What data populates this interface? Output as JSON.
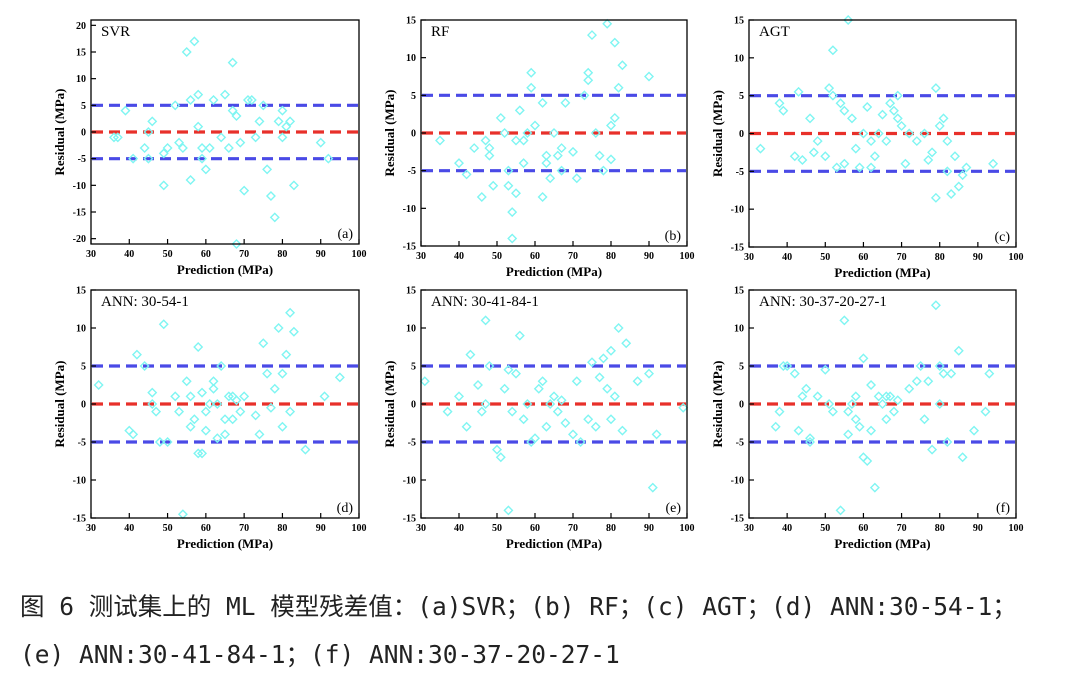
{
  "caption": {
    "line1": "图 6 测试集上的 ML 模型残差值：(a)SVR；(b) RF；(c) AGT；(d) ANN:30-54-1；",
    "line2": "(e) ANN:30-41-84-1；(f) ANN:30-37-20-27-1"
  },
  "colors": {
    "points": "#7ff5f2",
    "zero_line": "#e8302a",
    "band_lines": "#4a4ae6",
    "axes": "#000000"
  },
  "chart_data": [
    {
      "type": "scatter",
      "title": "SVR",
      "panel_label": "(a)",
      "xlabel": "Prediction (MPa)",
      "ylabel": "Residual (MPa)",
      "xlim": [
        30,
        100
      ],
      "ylim": [
        -21,
        21
      ],
      "xticks": [
        30,
        40,
        50,
        60,
        70,
        80,
        90,
        100
      ],
      "yticks": [
        -20,
        -15,
        -10,
        -5,
        0,
        5,
        10,
        15,
        20
      ],
      "reference_lines": [
        -5,
        0,
        5
      ],
      "points": [
        [
          36,
          -1
        ],
        [
          37,
          -1
        ],
        [
          39,
          4
        ],
        [
          41,
          -5
        ],
        [
          44,
          -3
        ],
        [
          45,
          -5
        ],
        [
          45,
          0
        ],
        [
          46,
          2
        ],
        [
          49,
          -4
        ],
        [
          49,
          -10
        ],
        [
          50,
          -3
        ],
        [
          52,
          5
        ],
        [
          53,
          -2
        ],
        [
          54,
          -3
        ],
        [
          55,
          15
        ],
        [
          56,
          -9
        ],
        [
          56,
          6
        ],
        [
          57,
          17
        ],
        [
          58,
          7
        ],
        [
          58,
          1
        ],
        [
          59,
          -3
        ],
        [
          59,
          -5
        ],
        [
          60,
          -7
        ],
        [
          61,
          -3
        ],
        [
          62,
          6
        ],
        [
          64,
          -1
        ],
        [
          65,
          7
        ],
        [
          66,
          -3
        ],
        [
          67,
          13
        ],
        [
          67,
          4
        ],
        [
          68,
          3
        ],
        [
          68,
          -21
        ],
        [
          69,
          -2
        ],
        [
          70,
          -11
        ],
        [
          71,
          6
        ],
        [
          72,
          6
        ],
        [
          73,
          -1
        ],
        [
          74,
          2
        ],
        [
          75,
          5
        ],
        [
          76,
          -7
        ],
        [
          77,
          -12
        ],
        [
          78,
          -16
        ],
        [
          79,
          2
        ],
        [
          80,
          -1
        ],
        [
          80,
          4
        ],
        [
          81,
          1
        ],
        [
          82,
          2
        ],
        [
          83,
          -10
        ],
        [
          90,
          -2
        ],
        [
          92,
          -5
        ]
      ]
    },
    {
      "type": "scatter",
      "title": "RF",
      "panel_label": "(b)",
      "xlabel": "Prediction (MPa)",
      "ylabel": "Residual (MPa)",
      "xlim": [
        30,
        100
      ],
      "ylim": [
        -15,
        15
      ],
      "xticks": [
        30,
        40,
        50,
        60,
        70,
        80,
        90,
        100
      ],
      "yticks": [
        -15,
        -10,
        -5,
        0,
        5,
        10,
        15
      ],
      "reference_lines": [
        -5,
        0,
        5
      ],
      "points": [
        [
          35,
          -1
        ],
        [
          40,
          -4
        ],
        [
          42,
          -5.5
        ],
        [
          44,
          -2
        ],
        [
          46,
          -8.5
        ],
        [
          47,
          -1
        ],
        [
          48,
          -3
        ],
        [
          48,
          -2
        ],
        [
          49,
          -7
        ],
        [
          51,
          2
        ],
        [
          52,
          0
        ],
        [
          53,
          -5
        ],
        [
          53,
          -7
        ],
        [
          54,
          -14
        ],
        [
          54,
          -10.5
        ],
        [
          55,
          -8
        ],
        [
          55,
          -1
        ],
        [
          56,
          3
        ],
        [
          57,
          -1
        ],
        [
          57,
          -4
        ],
        [
          58,
          0
        ],
        [
          59,
          8
        ],
        [
          59,
          6
        ],
        [
          60,
          1
        ],
        [
          62,
          -8.5
        ],
        [
          62,
          4
        ],
        [
          63,
          -4
        ],
        [
          63,
          -3
        ],
        [
          64,
          -6
        ],
        [
          65,
          0
        ],
        [
          66,
          -3
        ],
        [
          67,
          -2
        ],
        [
          67,
          -5
        ],
        [
          68,
          4
        ],
        [
          70,
          -2.5
        ],
        [
          71,
          -6
        ],
        [
          73,
          5
        ],
        [
          74,
          8
        ],
        [
          74,
          7
        ],
        [
          75,
          13
        ],
        [
          76,
          0
        ],
        [
          77,
          -3
        ],
        [
          78,
          -5
        ],
        [
          79,
          14.5
        ],
        [
          80,
          1
        ],
        [
          80,
          -3.5
        ],
        [
          81,
          12
        ],
        [
          81,
          2
        ],
        [
          82,
          6
        ],
        [
          83,
          9
        ],
        [
          90,
          7.5
        ]
      ]
    },
    {
      "type": "scatter",
      "title": "AGT",
      "panel_label": "(c)",
      "xlabel": "Prediction (MPa)",
      "ylabel": "Residual (MPa)",
      "xlim": [
        30,
        100
      ],
      "ylim": [
        -15,
        15
      ],
      "xticks": [
        30,
        40,
        50,
        60,
        70,
        80,
        90,
        100
      ],
      "yticks": [
        -15,
        -10,
        -5,
        0,
        5,
        10,
        15
      ],
      "reference_lines": [
        -5,
        0,
        5
      ],
      "points": [
        [
          33,
          -2
        ],
        [
          38,
          4
        ],
        [
          39,
          3
        ],
        [
          42,
          -3
        ],
        [
          43,
          5.5
        ],
        [
          44,
          -3.5
        ],
        [
          46,
          2
        ],
        [
          47,
          -2.5
        ],
        [
          48,
          -1
        ],
        [
          50,
          -3
        ],
        [
          51,
          6
        ],
        [
          52,
          11
        ],
        [
          52,
          5
        ],
        [
          53,
          -4.5
        ],
        [
          54,
          4
        ],
        [
          55,
          3
        ],
        [
          55,
          -4
        ],
        [
          56,
          15
        ],
        [
          57,
          2
        ],
        [
          58,
          -2
        ],
        [
          59,
          -4.5
        ],
        [
          60,
          0
        ],
        [
          61,
          3.5
        ],
        [
          62,
          -1
        ],
        [
          62,
          -4.5
        ],
        [
          63,
          -3
        ],
        [
          64,
          0
        ],
        [
          65,
          2.5
        ],
        [
          66,
          -1
        ],
        [
          67,
          4
        ],
        [
          68,
          3
        ],
        [
          69,
          5
        ],
        [
          69,
          2
        ],
        [
          70,
          1
        ],
        [
          71,
          -4
        ],
        [
          72,
          0
        ],
        [
          74,
          -1
        ],
        [
          76,
          0
        ],
        [
          77,
          -3.5
        ],
        [
          78,
          -2.5
        ],
        [
          79,
          6
        ],
        [
          79,
          -8.5
        ],
        [
          80,
          1
        ],
        [
          81,
          2
        ],
        [
          82,
          -1
        ],
        [
          82,
          -5
        ],
        [
          83,
          -8
        ],
        [
          84,
          -3
        ],
        [
          85,
          -7
        ],
        [
          86,
          -5.5
        ],
        [
          87,
          -4.5
        ],
        [
          94,
          -4
        ]
      ]
    },
    {
      "type": "scatter",
      "title": "ANN: 30-54-1",
      "panel_label": "(d)",
      "xlabel": "Prediction (MPa)",
      "ylabel": "Residual (MPa)",
      "xlim": [
        30,
        100
      ],
      "ylim": [
        -15,
        15
      ],
      "xticks": [
        30,
        40,
        50,
        60,
        70,
        80,
        90,
        100
      ],
      "yticks": [
        -15,
        -10,
        -5,
        0,
        5,
        10,
        15
      ],
      "reference_lines": [
        -5,
        0,
        5
      ],
      "points": [
        [
          32,
          2.5
        ],
        [
          40,
          -3.5
        ],
        [
          41,
          -4
        ],
        [
          42,
          6.5
        ],
        [
          44,
          5
        ],
        [
          46,
          1.5
        ],
        [
          46,
          0
        ],
        [
          47,
          -1
        ],
        [
          48,
          -5
        ],
        [
          49,
          10.5
        ],
        [
          50,
          -5
        ],
        [
          52,
          1
        ],
        [
          53,
          -1
        ],
        [
          54,
          -14.5
        ],
        [
          55,
          3
        ],
        [
          56,
          1
        ],
        [
          56,
          -3
        ],
        [
          57,
          -2
        ],
        [
          58,
          7.5
        ],
        [
          58,
          -6.5
        ],
        [
          59,
          1.5
        ],
        [
          59,
          -6.5
        ],
        [
          60,
          -1
        ],
        [
          60,
          -3.5
        ],
        [
          61,
          0
        ],
        [
          62,
          2
        ],
        [
          62,
          3
        ],
        [
          63,
          -4.5
        ],
        [
          63,
          0
        ],
        [
          64,
          5
        ],
        [
          65,
          -2
        ],
        [
          65,
          -4
        ],
        [
          66,
          1
        ],
        [
          67,
          -2
        ],
        [
          67,
          1
        ],
        [
          68,
          0.5
        ],
        [
          69,
          -1
        ],
        [
          70,
          1
        ],
        [
          73,
          -1.5
        ],
        [
          74,
          -4
        ],
        [
          75,
          8
        ],
        [
          76,
          4
        ],
        [
          77,
          -0.5
        ],
        [
          78,
          2
        ],
        [
          79,
          10
        ],
        [
          80,
          -3
        ],
        [
          80,
          4
        ],
        [
          81,
          6.5
        ],
        [
          82,
          -1
        ],
        [
          82,
          12
        ],
        [
          83,
          9.5
        ],
        [
          86,
          -6
        ],
        [
          91,
          1
        ],
        [
          95,
          3.5
        ]
      ]
    },
    {
      "type": "scatter",
      "title": "ANN: 30-41-84-1",
      "panel_label": "(e)",
      "xlabel": "Prediction (MPa)",
      "ylabel": "Residual (MPa)",
      "xlim": [
        30,
        100
      ],
      "ylim": [
        -15,
        15
      ],
      "xticks": [
        30,
        40,
        50,
        60,
        70,
        80,
        90,
        100
      ],
      "yticks": [
        -15,
        -10,
        -5,
        0,
        5,
        10,
        15
      ],
      "reference_lines": [
        -5,
        0,
        5
      ],
      "points": [
        [
          31,
          3
        ],
        [
          37,
          -1
        ],
        [
          40,
          1
        ],
        [
          42,
          -3
        ],
        [
          43,
          6.5
        ],
        [
          45,
          2.5
        ],
        [
          46,
          -1
        ],
        [
          47,
          0
        ],
        [
          47,
          11
        ],
        [
          48,
          5
        ],
        [
          50,
          -6
        ],
        [
          51,
          -7
        ],
        [
          52,
          2
        ],
        [
          53,
          4.5
        ],
        [
          53,
          -14
        ],
        [
          54,
          -1
        ],
        [
          55,
          4
        ],
        [
          56,
          9
        ],
        [
          57,
          -2
        ],
        [
          58,
          0
        ],
        [
          59,
          -5
        ],
        [
          60,
          -4.5
        ],
        [
          61,
          2
        ],
        [
          62,
          3
        ],
        [
          63,
          -3
        ],
        [
          64,
          0
        ],
        [
          65,
          1
        ],
        [
          66,
          -1
        ],
        [
          67,
          0.5
        ],
        [
          68,
          -2.5
        ],
        [
          70,
          -4
        ],
        [
          71,
          3
        ],
        [
          72,
          -5
        ],
        [
          74,
          -2
        ],
        [
          75,
          5.5
        ],
        [
          76,
          -3
        ],
        [
          77,
          3.5
        ],
        [
          78,
          6
        ],
        [
          79,
          2
        ],
        [
          80,
          -2
        ],
        [
          80,
          7
        ],
        [
          81,
          1
        ],
        [
          82,
          10
        ],
        [
          83,
          -3.5
        ],
        [
          84,
          8
        ],
        [
          87,
          3
        ],
        [
          90,
          4
        ],
        [
          91,
          -11
        ],
        [
          92,
          -4
        ],
        [
          99,
          -0.5
        ]
      ]
    },
    {
      "type": "scatter",
      "title": "ANN: 30-37-20-27-1",
      "panel_label": "(f)",
      "xlabel": "Prediction (MPa)",
      "ylabel": "Residual (MPa)",
      "xlim": [
        30,
        100
      ],
      "ylim": [
        -15,
        15
      ],
      "xticks": [
        30,
        40,
        50,
        60,
        70,
        80,
        90,
        100
      ],
      "yticks": [
        -15,
        -10,
        -5,
        0,
        5,
        10,
        15
      ],
      "reference_lines": [
        -5,
        0,
        5
      ],
      "points": [
        [
          37,
          -3
        ],
        [
          38,
          -1
        ],
        [
          39,
          5
        ],
        [
          40,
          5
        ],
        [
          42,
          4
        ],
        [
          43,
          -3.5
        ],
        [
          44,
          1
        ],
        [
          45,
          2
        ],
        [
          46,
          -4.5
        ],
        [
          46,
          -5
        ],
        [
          48,
          1
        ],
        [
          50,
          4.5
        ],
        [
          51,
          0
        ],
        [
          52,
          -1
        ],
        [
          54,
          -14
        ],
        [
          55,
          11
        ],
        [
          56,
          -1
        ],
        [
          56,
          -4
        ],
        [
          57,
          0
        ],
        [
          58,
          1
        ],
        [
          58,
          -2
        ],
        [
          59,
          -3
        ],
        [
          60,
          6
        ],
        [
          60,
          -7
        ],
        [
          61,
          -7.5
        ],
        [
          62,
          -3.5
        ],
        [
          62,
          2.5
        ],
        [
          63,
          -11
        ],
        [
          64,
          1
        ],
        [
          65,
          0
        ],
        [
          66,
          -2
        ],
        [
          66,
          1
        ],
        [
          67,
          1
        ],
        [
          68,
          -1
        ],
        [
          69,
          0.5
        ],
        [
          72,
          2
        ],
        [
          74,
          3
        ],
        [
          75,
          5
        ],
        [
          76,
          -2
        ],
        [
          77,
          3
        ],
        [
          78,
          -6
        ],
        [
          79,
          13
        ],
        [
          80,
          0
        ],
        [
          80,
          5
        ],
        [
          81,
          4
        ],
        [
          82,
          -5
        ],
        [
          83,
          4
        ],
        [
          85,
          7
        ],
        [
          86,
          -7
        ],
        [
          89,
          -3.5
        ],
        [
          92,
          -1
        ],
        [
          93,
          4
        ]
      ]
    }
  ]
}
